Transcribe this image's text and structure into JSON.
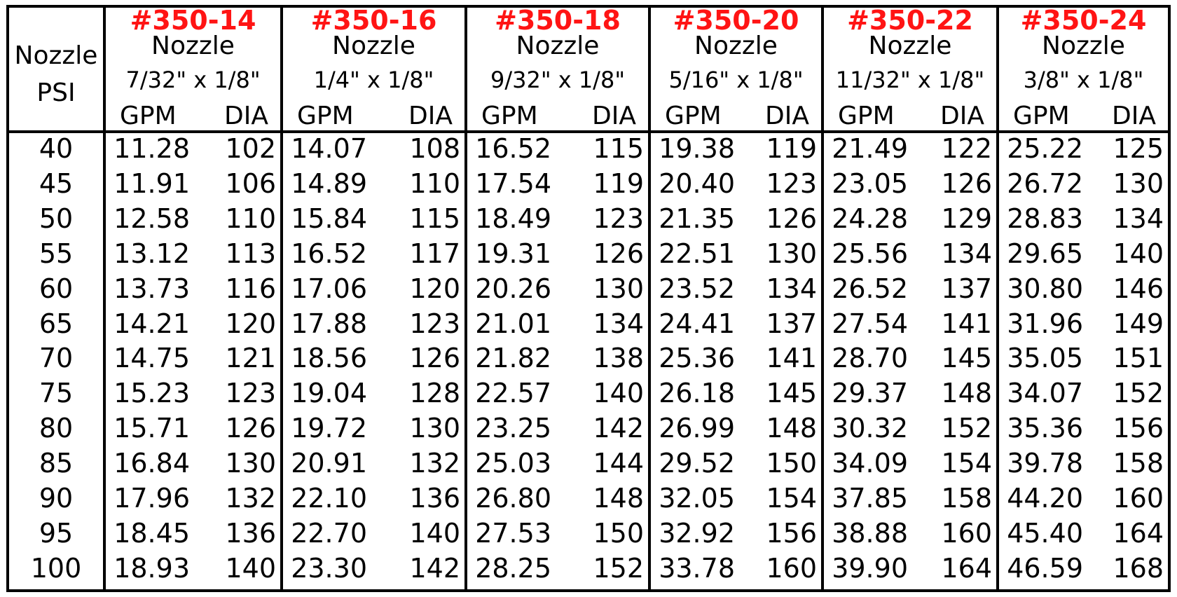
{
  "psi_header": {
    "line1": "Nozzle",
    "line2": "PSI"
  },
  "sub_headers": {
    "gpm": "GPM",
    "dia": "DIA"
  },
  "colors": {
    "model_red": "#ff1414",
    "border": "#000000"
  },
  "nozzles": [
    {
      "model": "#350-14",
      "name": "Nozzle",
      "size": "7/32\" x 1/8\""
    },
    {
      "model": "#350-16",
      "name": "Nozzle",
      "size": "1/4\" x 1/8\""
    },
    {
      "model": "#350-18",
      "name": "Nozzle",
      "size": "9/32\" x 1/8\""
    },
    {
      "model": "#350-20",
      "name": "Nozzle",
      "size": "5/16\" x 1/8\""
    },
    {
      "model": "#350-22",
      "name": "Nozzle",
      "size": "11/32\" x 1/8\""
    },
    {
      "model": "#350-24",
      "name": "Nozzle",
      "size": "3/8\" x 1/8\""
    }
  ],
  "rows": [
    {
      "psi": "40",
      "values": [
        [
          "11.28",
          "102"
        ],
        [
          "14.07",
          "108"
        ],
        [
          "16.52",
          "115"
        ],
        [
          "19.38",
          "119"
        ],
        [
          "21.49",
          "122"
        ],
        [
          "25.22",
          "125"
        ]
      ]
    },
    {
      "psi": "45",
      "values": [
        [
          "11.91",
          "106"
        ],
        [
          "14.89",
          "110"
        ],
        [
          "17.54",
          "119"
        ],
        [
          "20.40",
          "123"
        ],
        [
          "23.05",
          "126"
        ],
        [
          "26.72",
          "130"
        ]
      ]
    },
    {
      "psi": "50",
      "values": [
        [
          "12.58",
          "110"
        ],
        [
          "15.84",
          "115"
        ],
        [
          "18.49",
          "123"
        ],
        [
          "21.35",
          "126"
        ],
        [
          "24.28",
          "129"
        ],
        [
          "28.83",
          "134"
        ]
      ]
    },
    {
      "psi": "55",
      "values": [
        [
          "13.12",
          "113"
        ],
        [
          "16.52",
          "117"
        ],
        [
          "19.31",
          "126"
        ],
        [
          "22.51",
          "130"
        ],
        [
          "25.56",
          "134"
        ],
        [
          "29.65",
          "140"
        ]
      ]
    },
    {
      "psi": "60",
      "values": [
        [
          "13.73",
          "116"
        ],
        [
          "17.06",
          "120"
        ],
        [
          "20.26",
          "130"
        ],
        [
          "23.52",
          "134"
        ],
        [
          "26.52",
          "137"
        ],
        [
          "30.80",
          "146"
        ]
      ]
    },
    {
      "psi": "65",
      "values": [
        [
          "14.21",
          "120"
        ],
        [
          "17.88",
          "123"
        ],
        [
          "21.01",
          "134"
        ],
        [
          "24.41",
          "137"
        ],
        [
          "27.54",
          "141"
        ],
        [
          "31.96",
          "149"
        ]
      ]
    },
    {
      "psi": "70",
      "values": [
        [
          "14.75",
          "121"
        ],
        [
          "18.56",
          "126"
        ],
        [
          "21.82",
          "138"
        ],
        [
          "25.36",
          "141"
        ],
        [
          "28.70",
          "145"
        ],
        [
          "35.05",
          "151"
        ]
      ]
    },
    {
      "psi": "75",
      "values": [
        [
          "15.23",
          "123"
        ],
        [
          "19.04",
          "128"
        ],
        [
          "22.57",
          "140"
        ],
        [
          "26.18",
          "145"
        ],
        [
          "29.37",
          "148"
        ],
        [
          "34.07",
          "152"
        ]
      ]
    },
    {
      "psi": "80",
      "values": [
        [
          "15.71",
          "126"
        ],
        [
          "19.72",
          "130"
        ],
        [
          "23.25",
          "142"
        ],
        [
          "26.99",
          "148"
        ],
        [
          "30.32",
          "152"
        ],
        [
          "35.36",
          "156"
        ]
      ]
    },
    {
      "psi": "85",
      "values": [
        [
          "16.84",
          "130"
        ],
        [
          "20.91",
          "132"
        ],
        [
          "25.03",
          "144"
        ],
        [
          "29.52",
          "150"
        ],
        [
          "34.09",
          "154"
        ],
        [
          "39.78",
          "158"
        ]
      ]
    },
    {
      "psi": "90",
      "values": [
        [
          "17.96",
          "132"
        ],
        [
          "22.10",
          "136"
        ],
        [
          "26.80",
          "148"
        ],
        [
          "32.05",
          "154"
        ],
        [
          "37.85",
          "158"
        ],
        [
          "44.20",
          "160"
        ]
      ]
    },
    {
      "psi": "95",
      "values": [
        [
          "18.45",
          "136"
        ],
        [
          "22.70",
          "140"
        ],
        [
          "27.53",
          "150"
        ],
        [
          "32.92",
          "156"
        ],
        [
          "38.88",
          "160"
        ],
        [
          "45.40",
          "164"
        ]
      ]
    },
    {
      "psi": "100",
      "values": [
        [
          "18.93",
          "140"
        ],
        [
          "23.30",
          "142"
        ],
        [
          "28.25",
          "152"
        ],
        [
          "33.78",
          "160"
        ],
        [
          "39.90",
          "164"
        ],
        [
          "46.59",
          "168"
        ]
      ]
    }
  ]
}
